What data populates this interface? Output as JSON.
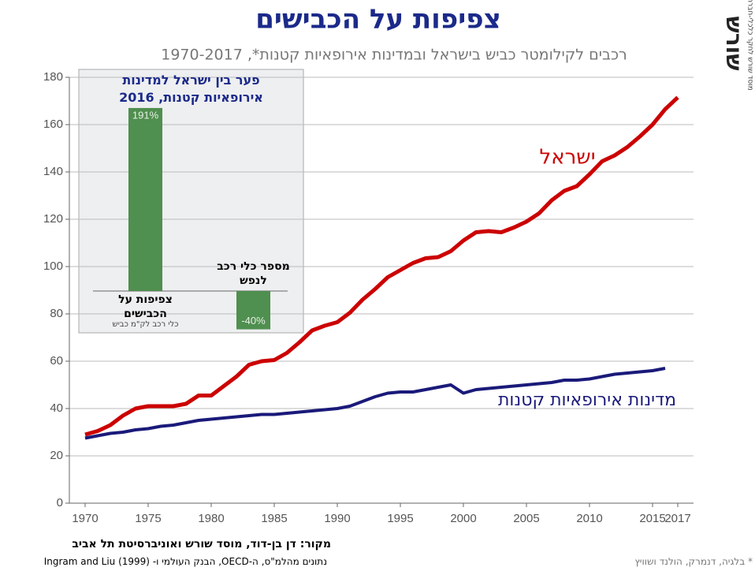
{
  "brand": {
    "logo": "שורש",
    "tagline": "מוסד שורש לחקר כלכלי-חברתי"
  },
  "source": "מקור:  דן בן-דוד, מוסד שורש ואוניברסיטת תל אביב",
  "data_note": "נתונים מהלמ\"ס, ה-OECD, הבנק העולמי ו-  Ingram and Liu (1999)",
  "footnote": "* בלגיה, דנמרק, הולנד ושוויץ",
  "chart_data": [
    {
      "type": "line",
      "title": "צפיפות על הכבישים",
      "subtitle": "רכבים לקילומטר כביש בישראל ובמדינות אירופאיות קטנות*, 1970-2017",
      "x": [
        1970,
        1971,
        1972,
        1973,
        1974,
        1975,
        1976,
        1977,
        1978,
        1979,
        1980,
        1981,
        1982,
        1983,
        1984,
        1985,
        1986,
        1987,
        1988,
        1989,
        1990,
        1991,
        1992,
        1993,
        1994,
        1995,
        1996,
        1997,
        1998,
        1999,
        2000,
        2001,
        2002,
        2003,
        2004,
        2005,
        2006,
        2007,
        2008,
        2009,
        2010,
        2011,
        2012,
        2013,
        2014,
        2015,
        2016,
        2017
      ],
      "series": [
        {
          "name": "ישראל",
          "color": "#cc0000",
          "values": [
            29,
            30.5,
            33,
            37,
            40,
            41,
            41,
            41,
            42,
            45.5,
            45.5,
            49.5,
            53.5,
            58.5,
            60,
            60.5,
            63.5,
            68,
            73,
            75,
            76.5,
            80.5,
            86,
            90.5,
            95.5,
            98.5,
            101.5,
            103.5,
            104,
            106.5,
            111,
            114.5,
            115,
            114.5,
            116.5,
            119,
            122.5,
            128,
            132,
            134,
            139,
            144.5,
            147,
            150.5,
            155,
            160,
            166.5,
            171.5
          ]
        },
        {
          "name": "מדינות אירופאיות קטנות",
          "color": "#1a1a7a",
          "values": [
            27.5,
            28.5,
            29.5,
            30,
            31,
            31.5,
            32.5,
            33,
            34,
            35,
            35.5,
            36,
            36.5,
            37,
            37.5,
            37.5,
            38,
            38.5,
            39,
            39.5,
            40,
            41,
            43,
            45,
            46.5,
            47,
            47,
            48,
            49,
            50,
            46.5,
            48,
            48.5,
            49,
            49.5,
            50,
            50.5,
            51,
            52,
            52,
            52.5,
            53.5,
            54.5,
            55,
            55.5,
            56,
            57,
            null
          ]
        }
      ],
      "xlim": [
        1968.75,
        2018.25
      ],
      "xticks": [
        1970,
        1975,
        1980,
        1985,
        1990,
        1995,
        2000,
        2005,
        2010,
        2015,
        2017
      ],
      "ylim": [
        0,
        180
      ],
      "yticks": [
        0,
        20,
        40,
        60,
        80,
        100,
        120,
        140,
        160,
        180
      ],
      "grid": true
    },
    {
      "type": "bar",
      "title": [
        "פער בין ישראל למדינות",
        "אירופאיות קטנות, 2016"
      ],
      "categories": [
        "צפיפות על הכבישים",
        "מספר כלי רכב לנפש"
      ],
      "category_notes": [
        "כלי רכב לק\"מ כביש",
        null
      ],
      "values": [
        191,
        -40
      ],
      "value_labels": [
        "191%",
        "-40%"
      ],
      "color": "#4f8f4f"
    }
  ]
}
